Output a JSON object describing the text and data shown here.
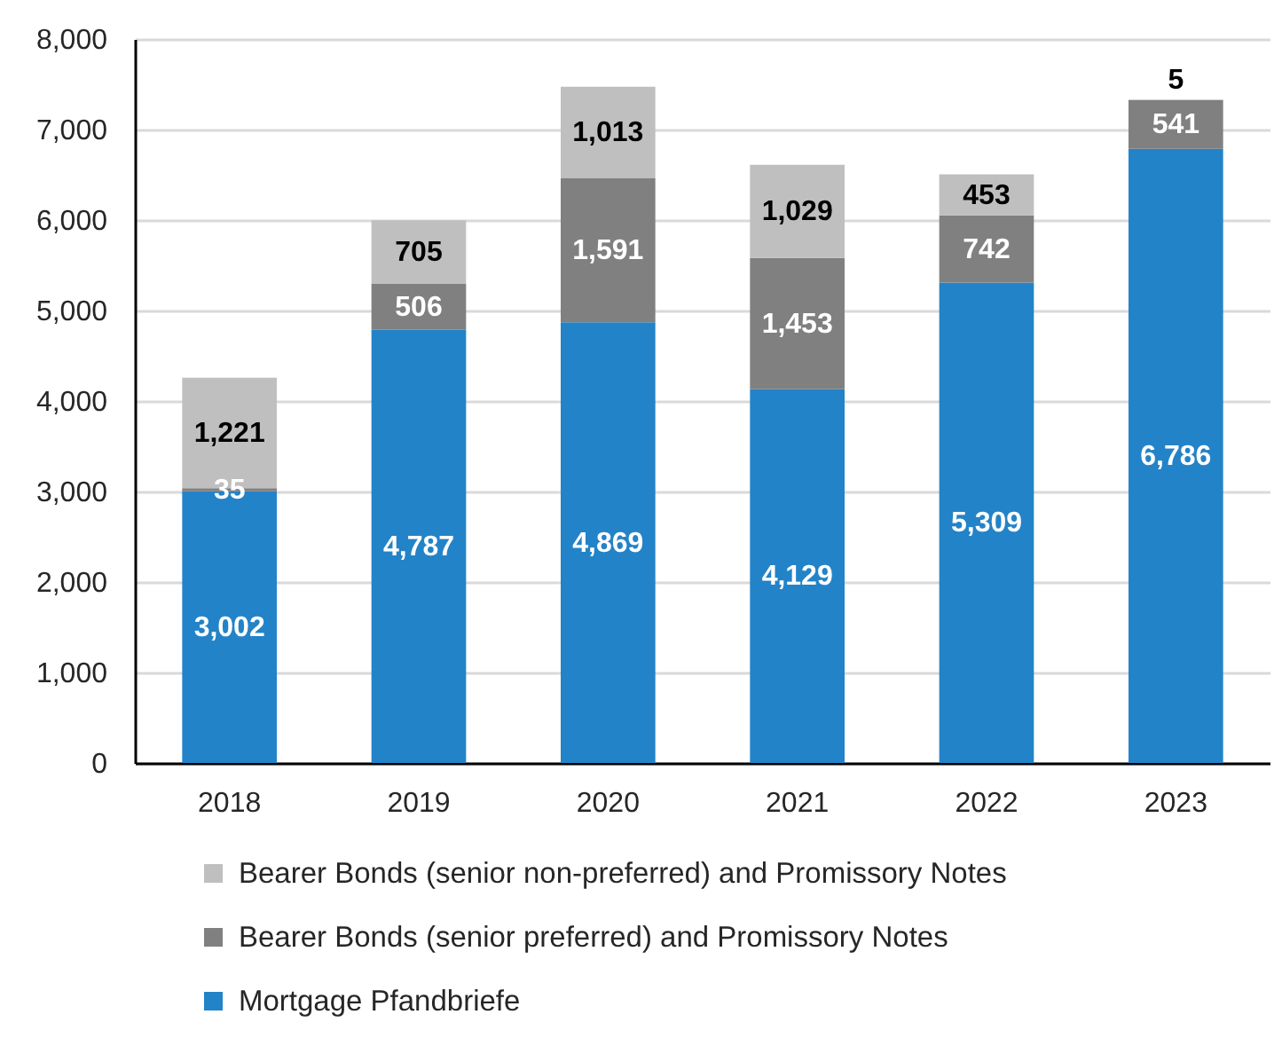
{
  "chart_data": {
    "type": "bar",
    "stacked": true,
    "categories": [
      "2018",
      "2019",
      "2020",
      "2021",
      "2022",
      "2023"
    ],
    "series": [
      {
        "name": "Mortgage Pfandbriefe",
        "color": "#2383c8",
        "values": [
          3002,
          4787,
          4869,
          4129,
          5309,
          6786
        ],
        "value_labels": [
          "3,002",
          "4,787",
          "4,869",
          "4,129",
          "5,309",
          "6,786"
        ]
      },
      {
        "name": "Bearer Bonds (senior preferred) and Promissory Notes",
        "color": "#808080",
        "values": [
          35,
          506,
          1591,
          1453,
          742,
          541
        ],
        "value_labels": [
          "35",
          "506",
          "1,591",
          "1,453",
          "742",
          "541"
        ]
      },
      {
        "name": "Bearer Bonds (senior non-preferred) and Promissory Notes",
        "color": "#bfbfbf",
        "values": [
          1221,
          705,
          1013,
          1029,
          453,
          5
        ],
        "value_labels": [
          "1,221",
          "705",
          "1,013",
          "1,029",
          "453",
          "5"
        ]
      }
    ],
    "ylim": [
      0,
      8000
    ],
    "yticks": [
      0,
      {
        "value": 1000,
        "label": "1,000"
      },
      {
        "value": 2000,
        "label": "2,000"
      },
      {
        "value": 3000,
        "label": "3,000"
      },
      {
        "value": 4000,
        "label": "4,000"
      },
      {
        "value": 5000,
        "label": "5,000"
      },
      {
        "value": 6000,
        "label": "6,000"
      },
      {
        "value": 7000,
        "label": "7,000"
      },
      {
        "value": 8000,
        "label": "8,000"
      }
    ],
    "grid": "y",
    "legend": "bottom"
  }
}
